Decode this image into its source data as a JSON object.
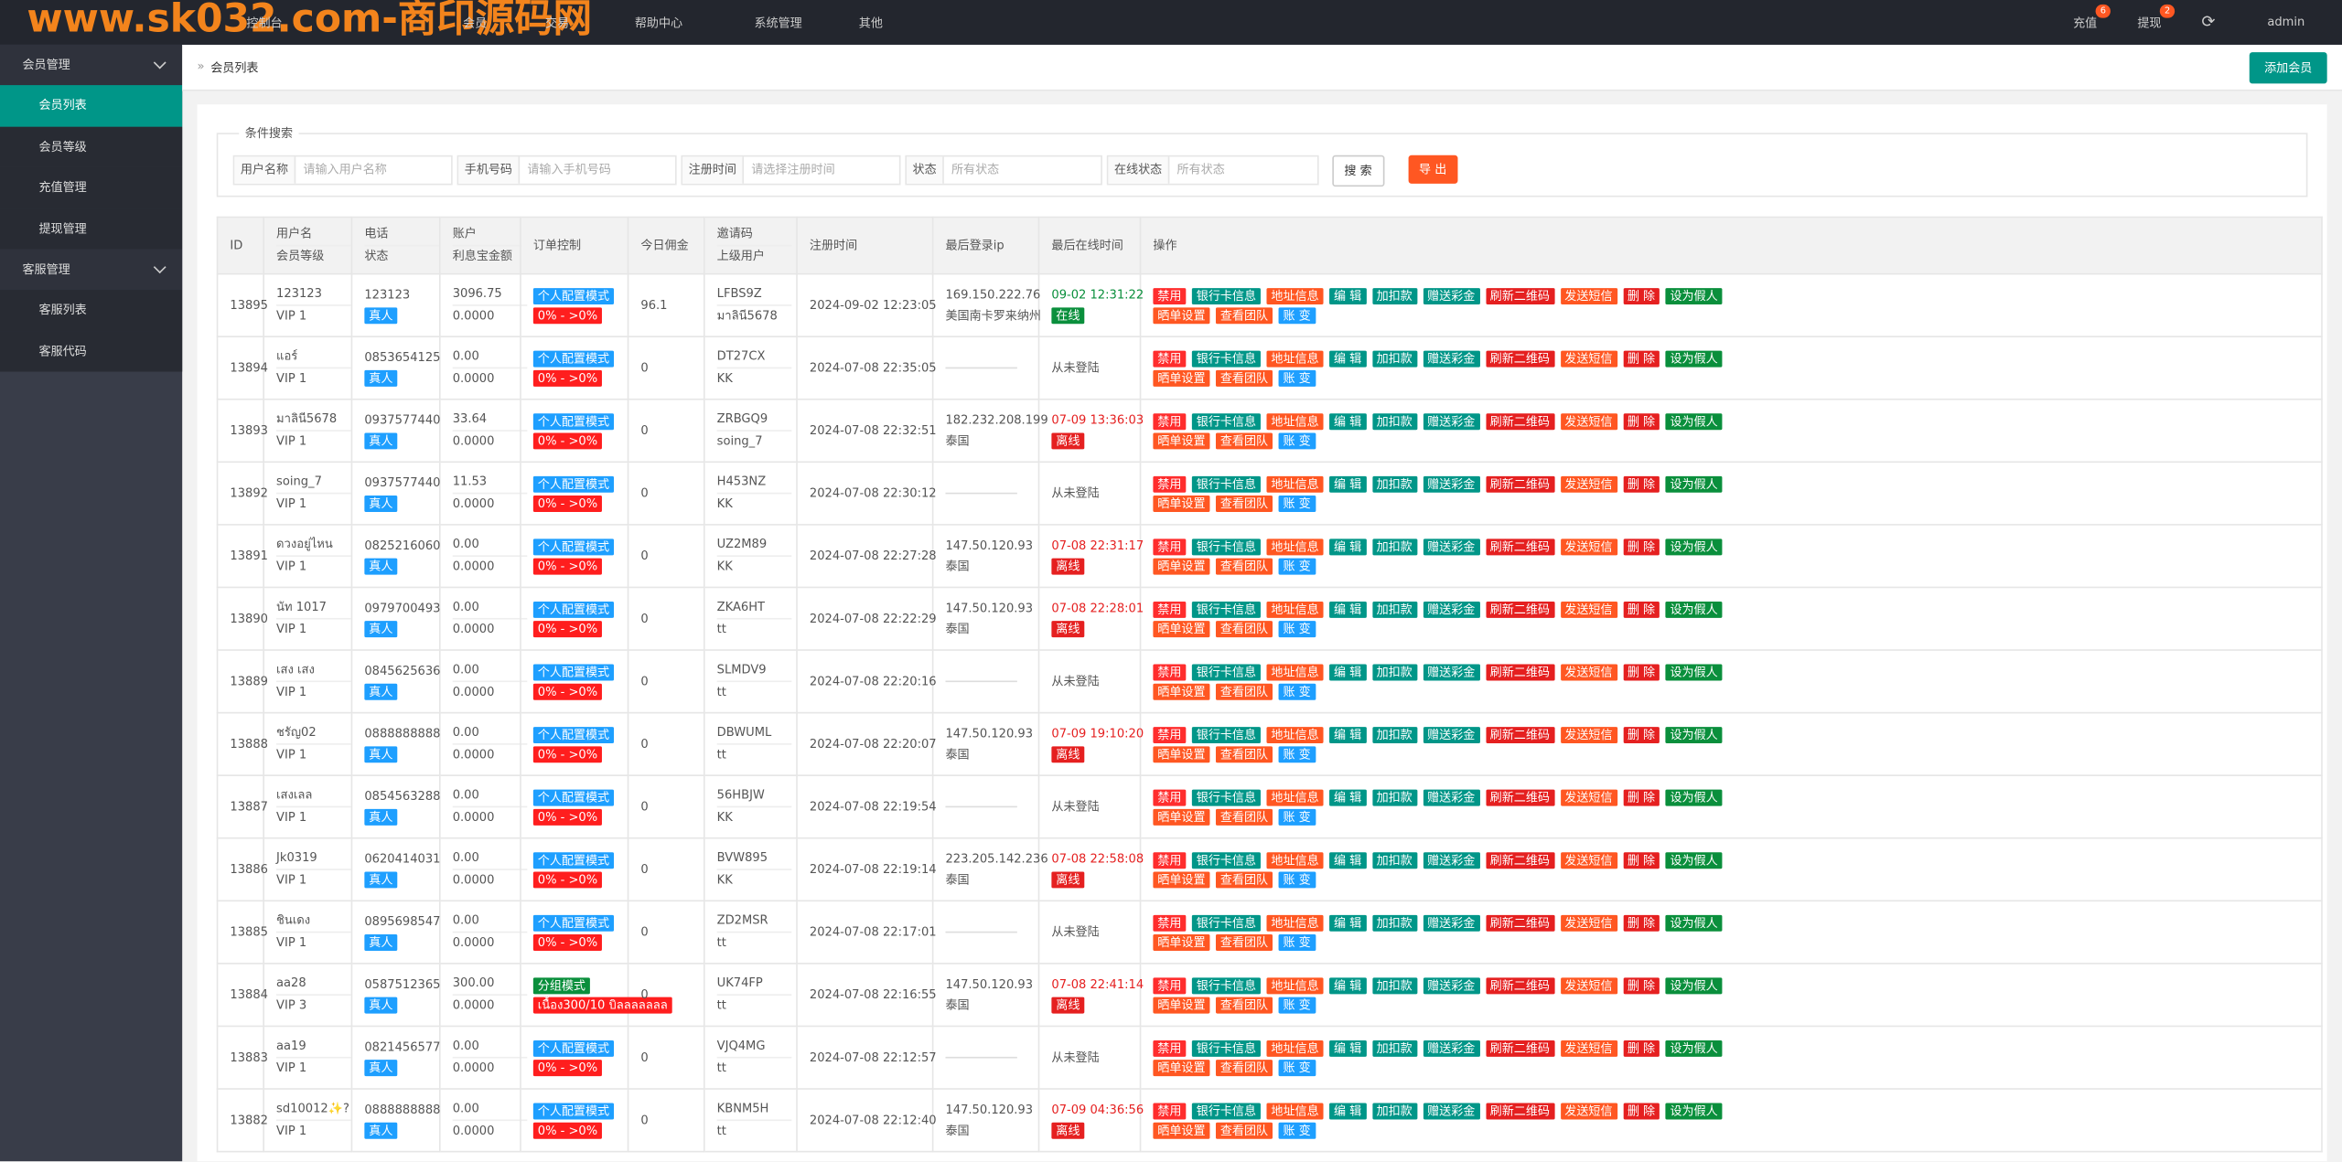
{
  "watermark": "www.sk032.com-商印源码网",
  "topnav": {
    "items": [
      "控制台",
      "会员",
      "交易",
      "帮助中心",
      "系统管理",
      "其他"
    ],
    "recharge": "充值",
    "recharge_badge": "6",
    "withdraw": "提现",
    "withdraw_badge": "2",
    "user": "admin"
  },
  "sidebar": [
    {
      "group": "会员管理",
      "items": [
        "会员列表",
        "会员等级",
        "充值管理",
        "提现管理"
      ]
    },
    {
      "group": "客服管理",
      "items": [
        "客服列表",
        "客服代码"
      ]
    }
  ],
  "breadcrumb": "会员列表",
  "add_button": "添加会员",
  "search": {
    "legend": "条件搜索",
    "fields": [
      {
        "label": "用户名称",
        "placeholder": "请输入用户名称"
      },
      {
        "label": "手机号码",
        "placeholder": "请输入手机号码"
      },
      {
        "label": "注册时间",
        "placeholder": "请选择注册时间"
      },
      {
        "label": "状态",
        "placeholder": "所有状态"
      },
      {
        "label": "在线状态",
        "placeholder": "所有状态"
      }
    ],
    "search_button": "搜 索",
    "export_button": "导 出"
  },
  "table": {
    "headers": [
      [
        "ID"
      ],
      [
        "用户名",
        "会员等级"
      ],
      [
        "电话",
        "状态"
      ],
      [
        "账户",
        "利息宝金额"
      ],
      [
        "订单控制"
      ],
      [
        "今日佣金"
      ],
      [
        "邀请码",
        "上级用户"
      ],
      [
        "注册时间"
      ],
      [
        "最后登录ip"
      ],
      [
        "最后在线时间"
      ],
      [
        "操作"
      ]
    ],
    "actions": [
      "禁用",
      "银行卡信息",
      "地址信息",
      "编 辑",
      "加扣款",
      "赠送彩金",
      "刷新二维码",
      "发送短信",
      "删 除",
      "设为假人",
      "晒单设置",
      "查看团队",
      "账 变"
    ],
    "rows": [
      {
        "id": "13895",
        "name": "123123",
        "level": "VIP 1",
        "phone": "123123",
        "type": "真人",
        "balance": "3096.75",
        "interest": "0.0000",
        "mode": "个人配置模式",
        "range": "0% - >0%",
        "commission": "96.1",
        "code": "LFBS9Z",
        "parent": "มาลินี5678",
        "reg": "2024-09-02 12:23:05",
        "ip": "169.150.222.76",
        "region": "美国南卡罗来纳州",
        "last": "09-02 12:31:22",
        "online": "在线"
      },
      {
        "id": "13894",
        "name": "แอร์",
        "level": "VIP 1",
        "phone": "0853654125",
        "type": "真人",
        "balance": "0.00",
        "interest": "0.0000",
        "mode": "个人配置模式",
        "range": "0% - >0%",
        "commission": "0",
        "code": "DT27CX",
        "parent": "KK",
        "reg": "2024-07-08 22:35:05",
        "last": "从未登陆"
      },
      {
        "id": "13893",
        "name": "มาลินี5678",
        "level": "VIP 1",
        "phone": "0937577440",
        "type": "真人",
        "balance": "33.64",
        "interest": "0.0000",
        "mode": "个人配置模式",
        "range": "0% - >0%",
        "commission": "0",
        "code": "ZRBGQ9",
        "parent": "soing_7",
        "reg": "2024-07-08 22:32:51",
        "ip": "182.232.208.199",
        "region": "泰国",
        "last": "07-09 13:36:03",
        "online": "离线"
      },
      {
        "id": "13892",
        "name": "soing_7",
        "level": "VIP 1",
        "phone": "0937577440",
        "type": "真人",
        "balance": "11.53",
        "interest": "0.0000",
        "mode": "个人配置模式",
        "range": "0% - >0%",
        "commission": "0",
        "code": "H453NZ",
        "parent": "KK",
        "reg": "2024-07-08 22:30:12",
        "last": "从未登陆"
      },
      {
        "id": "13891",
        "name": "ดวงอยู่ไหน",
        "level": "VIP 1",
        "phone": "0825216060",
        "type": "真人",
        "balance": "0.00",
        "interest": "0.0000",
        "mode": "个人配置模式",
        "range": "0% - >0%",
        "commission": "0",
        "code": "UZ2M89",
        "parent": "KK",
        "reg": "2024-07-08 22:27:28",
        "ip": "147.50.120.93",
        "region": "泰国",
        "last": "07-08 22:31:17",
        "online": "离线"
      },
      {
        "id": "13890",
        "name": "นัท 1017",
        "level": "VIP 1",
        "phone": "0979700493",
        "type": "真人",
        "balance": "0.00",
        "interest": "0.0000",
        "mode": "个人配置模式",
        "range": "0% - >0%",
        "commission": "0",
        "code": "ZKA6HT",
        "parent": "tt",
        "reg": "2024-07-08 22:22:29",
        "ip": "147.50.120.93",
        "region": "泰国",
        "last": "07-08 22:28:01",
        "online": "离线"
      },
      {
        "id": "13889",
        "name": "เสง เสง",
        "level": "VIP 1",
        "phone": "0845625636",
        "type": "真人",
        "balance": "0.00",
        "interest": "0.0000",
        "mode": "个人配置模式",
        "range": "0% - >0%",
        "commission": "0",
        "code": "SLMDV9",
        "parent": "tt",
        "reg": "2024-07-08 22:20:16",
        "last": "从未登陆"
      },
      {
        "id": "13888",
        "name": "ชรัญ02",
        "level": "VIP 1",
        "phone": "0888888888",
        "type": "真人",
        "balance": "0.00",
        "interest": "0.0000",
        "mode": "个人配置模式",
        "range": "0% - >0%",
        "commission": "0",
        "code": "DBWUML",
        "parent": "tt",
        "reg": "2024-07-08 22:20:07",
        "ip": "147.50.120.93",
        "region": "泰国",
        "last": "07-09 19:10:20",
        "online": "离线"
      },
      {
        "id": "13887",
        "name": "เสงเลล",
        "level": "VIP 1",
        "phone": "0854563288",
        "type": "真人",
        "balance": "0.00",
        "interest": "0.0000",
        "mode": "个人配置模式",
        "range": "0% - >0%",
        "commission": "0",
        "code": "56HBJW",
        "parent": "KK",
        "reg": "2024-07-08 22:19:54",
        "last": "从未登陆"
      },
      {
        "id": "13886",
        "name": "Jk0319",
        "level": "VIP 1",
        "phone": "0620414031",
        "type": "真人",
        "balance": "0.00",
        "interest": "0.0000",
        "mode": "个人配置模式",
        "range": "0% - >0%",
        "commission": "0",
        "code": "BVW895",
        "parent": "KK",
        "reg": "2024-07-08 22:19:14",
        "ip": "223.205.142.236",
        "region": "泰国",
        "last": "07-08 22:58:08",
        "online": "离线"
      },
      {
        "id": "13885",
        "name": "ชินเดง",
        "level": "VIP 1",
        "phone": "0895698547",
        "type": "真人",
        "balance": "0.00",
        "interest": "0.0000",
        "mode": "个人配置模式",
        "range": "0% - >0%",
        "commission": "0",
        "code": "ZD2MSR",
        "parent": "tt",
        "reg": "2024-07-08 22:17:01",
        "last": "从未登陆"
      },
      {
        "id": "13884",
        "name": "aa28",
        "level": "VIP 3",
        "phone": "0587512365",
        "type": "真人",
        "balance": "300.00",
        "interest": "0.0000",
        "mode": "分组模式",
        "range": "เนื้อง300/10 บิลลลลลลล",
        "commission": "0",
        "code": "UK74FP",
        "parent": "tt",
        "reg": "2024-07-08 22:16:55",
        "ip": "147.50.120.93",
        "region": "泰国",
        "last": "07-08 22:41:14",
        "online": "离线"
      },
      {
        "id": "13883",
        "name": "aa19",
        "level": "VIP 1",
        "phone": "0821456577",
        "type": "真人",
        "balance": "0.00",
        "interest": "0.0000",
        "mode": "个人配置模式",
        "range": "0% - >0%",
        "commission": "0",
        "code": "VJQ4MG",
        "parent": "tt",
        "reg": "2024-07-08 22:12:57",
        "last": "从未登陆"
      },
      {
        "id": "13882",
        "name": "sd10012✨?",
        "level": "VIP 1",
        "phone": "0888888888",
        "type": "真人",
        "balance": "0.00",
        "interest": "0.0000",
        "mode": "个人配置模式",
        "range": "0% - >0%",
        "commission": "0",
        "code": "KBNM5H",
        "parent": "tt",
        "reg": "2024-07-08 22:12:40",
        "ip": "147.50.120.93",
        "region": "泰国",
        "last": "07-09 04:36:56",
        "online": "离线"
      }
    ]
  }
}
